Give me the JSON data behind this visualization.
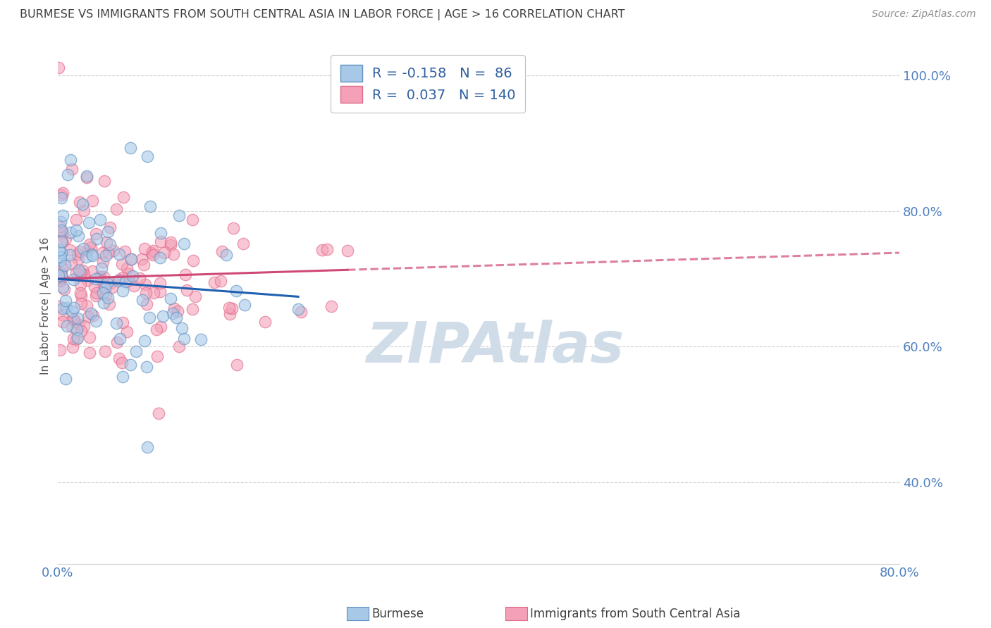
{
  "title": "BURMESE VS IMMIGRANTS FROM SOUTH CENTRAL ASIA IN LABOR FORCE | AGE > 16 CORRELATION CHART",
  "source": "Source: ZipAtlas.com",
  "ylabel": "In Labor Force | Age > 16",
  "blue_label": "Burmese",
  "pink_label": "Immigrants from South Central Asia",
  "blue_R": -0.158,
  "blue_N": 86,
  "pink_R": 0.037,
  "pink_N": 140,
  "blue_color": "#a8c8e8",
  "pink_color": "#f4a0b8",
  "blue_edge_color": "#6090c0",
  "pink_edge_color": "#e06888",
  "blue_line_color": "#2060b0",
  "pink_line_color": "#d04878",
  "x_min": 0.0,
  "x_max": 0.8,
  "y_min": 0.28,
  "y_max": 1.04,
  "blue_intercept": 0.7,
  "blue_slope": -0.115,
  "pink_intercept": 0.7,
  "pink_slope": 0.048,
  "background_color": "#ffffff",
  "grid_color": "#c8c8c8",
  "title_color": "#404040",
  "source_color": "#909090",
  "watermark": "ZIPAtlas",
  "watermark_color": "#d0dde8",
  "tick_color": "#5080c0",
  "seed_blue": 17,
  "seed_pink": 55
}
